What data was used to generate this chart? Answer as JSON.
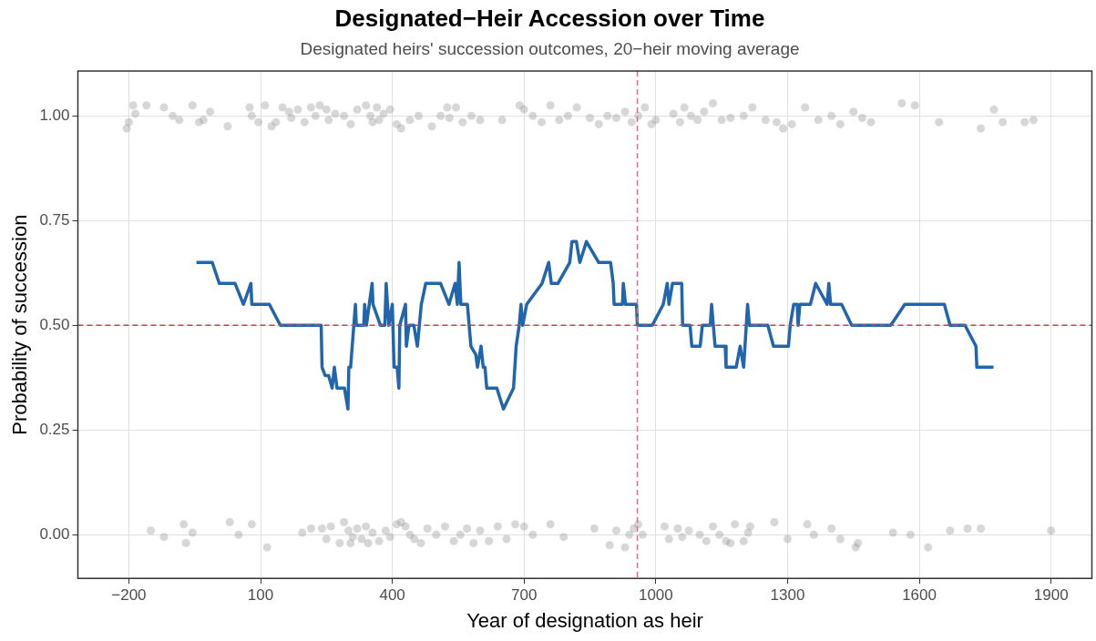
{
  "chart_data": {
    "type": "line",
    "title": "Designated−Heir Accession over Time",
    "subtitle": "Designated heirs' succession outcomes, 20−heir moving average",
    "xlabel": "Year of designation as heir",
    "ylabel": "Probability of succession",
    "xlim": [
      -316,
      1993
    ],
    "xticks": [
      {
        "value": -200,
        "label": "−200"
      },
      100,
      400,
      700,
      1000,
      1300,
      1600,
      1900
    ],
    "ylim": [
      -0.104,
      1.107
    ],
    "yticks": [
      {
        "value": 0,
        "label": "0.00"
      },
      {
        "value": 0.25,
        "label": "0.25"
      },
      {
        "value": 0.5,
        "label": "0.50"
      },
      {
        "value": 0.75,
        "label": "0.75"
      },
      {
        "value": 1,
        "label": "1.00"
      }
    ],
    "grid": true,
    "legend": false,
    "ref_lines": [
      {
        "axis": "y",
        "value": 0.5,
        "color": "#c9404f",
        "line_style": "dashed"
      },
      {
        "axis": "x",
        "value": 958,
        "color": "#d9708a",
        "line_style": "dashed"
      }
    ],
    "series": [
      {
        "type": "scatter",
        "color": "#8c8c8c",
        "marker": "circle",
        "x": [
          -205,
          -200,
          -190,
          -185,
          -160,
          -120,
          -100,
          -85,
          -55,
          -40,
          -30,
          -15,
          25,
          75,
          80,
          95,
          110,
          125,
          135,
          150,
          165,
          170,
          185,
          200,
          215,
          225,
          235,
          250,
          255,
          270,
          290,
          305,
          320,
          340,
          350,
          355,
          365,
          370,
          380,
          395,
          410,
          420,
          440,
          460,
          490,
          510,
          525,
          530,
          545,
          560,
          580,
          600,
          650,
          690,
          700,
          720,
          740,
          760,
          780,
          800,
          820,
          850,
          870,
          890,
          910,
          930,
          945,
          960,
          975,
          990,
          1000,
          1040,
          1055,
          1065,
          1080,
          1095,
          1110,
          1130,
          1150,
          1170,
          1200,
          1220,
          1250,
          1275,
          1290,
          1310,
          1340,
          1370,
          1400,
          1420,
          1450,
          1470,
          1490,
          1560,
          1590,
          1645,
          1740,
          1770,
          1790,
          1840,
          1860,
          -150,
          -120,
          -75,
          -70,
          -55,
          30,
          50,
          80,
          115,
          195,
          215,
          240,
          250,
          260,
          280,
          290,
          300,
          305,
          310,
          320,
          330,
          340,
          345,
          355,
          370,
          385,
          395,
          410,
          420,
          430,
          440,
          450,
          465,
          480,
          500,
          520,
          540,
          555,
          570,
          585,
          600,
          620,
          640,
          660,
          680,
          700,
          720,
          760,
          790,
          860,
          895,
          910,
          930,
          940,
          950,
          960,
          970,
          1020,
          1030,
          1050,
          1060,
          1075,
          1100,
          1115,
          1130,
          1145,
          1160,
          1170,
          1180,
          1200,
          1210,
          1215,
          1270,
          1300,
          1345,
          1360,
          1400,
          1420,
          1455,
          1460,
          1540,
          1580,
          1620,
          1670,
          1710,
          1740,
          1900
        ],
        "values": [
          0.97,
          0.985,
          1.025,
          1.005,
          1.025,
          1.02,
          1.0,
          0.99,
          1.025,
          0.985,
          0.99,
          1.01,
          0.975,
          1.02,
          1.0,
          0.985,
          1.025,
          0.975,
          0.985,
          1.02,
          1.01,
          0.995,
          1.015,
          0.985,
          1.02,
          1.0,
          1.025,
          1.015,
          0.99,
          1.005,
          1.0,
          0.98,
          1.015,
          1.025,
          1.0,
          0.985,
          1.02,
          0.99,
          1.005,
          1.015,
          0.98,
          0.97,
          0.99,
          1.0,
          0.975,
          1.0,
          1.02,
          0.995,
          1.02,
          0.985,
          1.0,
          0.99,
          0.99,
          1.025,
          1.015,
          1.0,
          0.985,
          1.025,
          0.99,
          1.0,
          1.02,
          0.995,
          0.98,
          1.0,
          0.995,
          1.01,
          0.985,
          1.0,
          1.02,
          0.98,
          0.99,
          1.005,
          0.985,
          1.02,
          1.0,
          0.99,
          1.01,
          1.03,
          0.99,
          0.995,
          1.0,
          1.02,
          0.99,
          0.985,
          0.97,
          0.98,
          1.02,
          0.99,
          1.0,
          0.98,
          1.01,
          0.995,
          0.985,
          1.03,
          1.025,
          0.985,
          0.97,
          1.015,
          0.985,
          0.985,
          0.99,
          0.01,
          -0.005,
          0.025,
          -0.02,
          0.005,
          0.03,
          0.0,
          0.025,
          -0.03,
          0.005,
          0.015,
          0.015,
          -0.01,
          0.02,
          -0.02,
          0.03,
          0.01,
          -0.02,
          -0.005,
          0.015,
          -0.01,
          0.02,
          -0.02,
          0.005,
          -0.015,
          0.01,
          -0.005,
          0.025,
          0.03,
          0.02,
          0.0,
          -0.01,
          -0.02,
          0.015,
          0.0,
          0.02,
          -0.015,
          0.0,
          0.015,
          -0.02,
          0.01,
          -0.015,
          0.02,
          -0.01,
          0.025,
          0.02,
          0.0,
          0.025,
          -0.005,
          0.015,
          -0.025,
          0.01,
          -0.03,
          0.0,
          0.015,
          0.025,
          0.0,
          0.02,
          -0.01,
          0.015,
          -0.005,
          0.01,
          0.0,
          -0.015,
          0.02,
          0.0,
          -0.015,
          -0.02,
          0.025,
          -0.015,
          0.005,
          0.02,
          0.03,
          -0.01,
          0.025,
          0.0,
          0.015,
          -0.01,
          -0.03,
          -0.02,
          0.005,
          0.0,
          -0.03,
          0.01,
          0.015,
          0.015,
          0.01
        ]
      },
      {
        "color": "#2166ac",
        "marker": "none",
        "x": [
          -46,
          -10,
          6,
          42,
          61,
          78,
          80,
          120,
          145,
          238,
          240,
          247,
          255,
          263,
          268,
          274,
          291,
          299,
          301,
          305,
          316,
          318,
          335,
          337,
          341,
          354,
          356,
          373,
          383,
          386,
          392,
          400,
          404,
          411,
          415,
          417,
          430,
          432,
          438,
          449,
          457,
          466,
          476,
          510,
          529,
          543,
          548,
          552,
          556,
          571,
          579,
          590,
          594,
          602,
          607,
          611,
          615,
          638,
          653,
          676,
          682,
          689,
          693,
          697,
          706,
          741,
          756,
          762,
          777,
          804,
          809,
          819,
          827,
          842,
          870,
          897,
          903,
          905,
          924,
          926,
          931,
          956,
          958,
          992,
          1017,
          1026,
          1030,
          1038,
          1059,
          1061,
          1078,
          1082,
          1101,
          1106,
          1124,
          1127,
          1135,
          1158,
          1160,
          1183,
          1192,
          1200,
          1209,
          1213,
          1255,
          1268,
          1302,
          1306,
          1314,
          1322,
          1324,
          1328,
          1352,
          1364,
          1390,
          1394,
          1398,
          1423,
          1446,
          1535,
          1567,
          1657,
          1670,
          1704,
          1729,
          1731,
          1769
        ],
        "values": [
          0.65,
          0.65,
          0.6,
          0.6,
          0.55,
          0.6,
          0.55,
          0.55,
          0.5,
          0.5,
          0.4,
          0.38,
          0.38,
          0.35,
          0.4,
          0.35,
          0.35,
          0.3,
          0.4,
          0.4,
          0.55,
          0.5,
          0.5,
          0.55,
          0.5,
          0.6,
          0.55,
          0.5,
          0.5,
          0.6,
          0.5,
          0.55,
          0.4,
          0.4,
          0.35,
          0.5,
          0.55,
          0.45,
          0.5,
          0.5,
          0.45,
          0.55,
          0.6,
          0.6,
          0.55,
          0.6,
          0.55,
          0.65,
          0.55,
          0.55,
          0.45,
          0.43,
          0.4,
          0.45,
          0.4,
          0.4,
          0.35,
          0.35,
          0.3,
          0.35,
          0.45,
          0.5,
          0.55,
          0.5,
          0.55,
          0.6,
          0.65,
          0.6,
          0.6,
          0.65,
          0.7,
          0.7,
          0.65,
          0.7,
          0.65,
          0.65,
          0.6,
          0.55,
          0.55,
          0.6,
          0.55,
          0.55,
          0.5,
          0.5,
          0.55,
          0.6,
          0.55,
          0.6,
          0.6,
          0.5,
          0.5,
          0.45,
          0.45,
          0.5,
          0.5,
          0.55,
          0.45,
          0.45,
          0.4,
          0.4,
          0.45,
          0.4,
          0.55,
          0.5,
          0.5,
          0.45,
          0.45,
          0.5,
          0.55,
          0.55,
          0.5,
          0.55,
          0.55,
          0.6,
          0.55,
          0.6,
          0.55,
          0.55,
          0.5,
          0.5,
          0.55,
          0.55,
          0.5,
          0.5,
          0.45,
          0.4,
          0.4
        ]
      }
    ]
  }
}
